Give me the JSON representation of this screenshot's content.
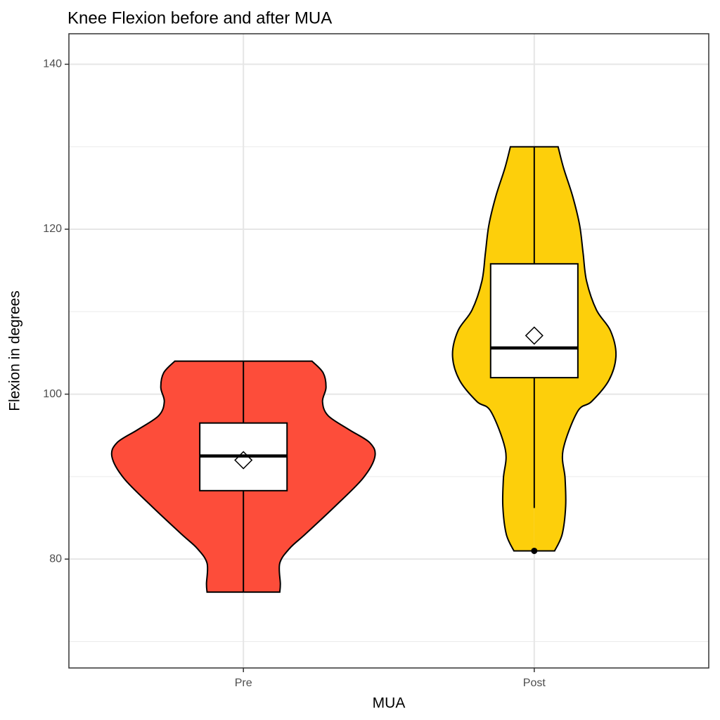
{
  "chart_data": {
    "type": "violin",
    "title": "Knee Flexion before and after MUA",
    "x_label": "MUA",
    "y_label": "Flexion in degrees",
    "categories": [
      "Pre",
      "Post"
    ],
    "ylim": [
      66.8,
      143.7
    ],
    "yticks": [
      80,
      100,
      120,
      140
    ],
    "yticks_minor": [
      70,
      90,
      110,
      130
    ],
    "grid": true,
    "groups": [
      {
        "color": "#fd4d3a",
        "whisker_low": 76,
        "q1": 88.3,
        "median": 92.5,
        "q3": 96.5,
        "whisker_high": 104,
        "mean": 92,
        "outliers": [],
        "violin_y": [
          76,
          77,
          79.5,
          81.3,
          83,
          86.4,
          89.8,
          92.4,
          94.1,
          95.7,
          97.4,
          99.1,
          100.8,
          102.6,
          104
        ],
        "violin_width": [
          0.125,
          0.127,
          0.125,
          0.159,
          0.212,
          0.315,
          0.411,
          0.452,
          0.435,
          0.363,
          0.291,
          0.272,
          0.284,
          0.274,
          0.236
        ]
      },
      {
        "color": "#fdcf0b",
        "whisker_low": 86.2,
        "q1": 102,
        "median": 105.6,
        "q3": 115.8,
        "whisker_high": 130,
        "mean": 107.1,
        "outliers": [
          81
        ],
        "violin_y": [
          81,
          83,
          86.4,
          89.8,
          93.2,
          97.9,
          99.1,
          101.7,
          104.7,
          107.7,
          110.2,
          113.7,
          117.1,
          120.5,
          124,
          127.4,
          130
        ],
        "violin_width": [
          0.07,
          0.096,
          0.108,
          0.106,
          0.099,
          0.149,
          0.197,
          0.257,
          0.281,
          0.262,
          0.214,
          0.18,
          0.168,
          0.156,
          0.132,
          0.101,
          0.082
        ]
      }
    ]
  }
}
